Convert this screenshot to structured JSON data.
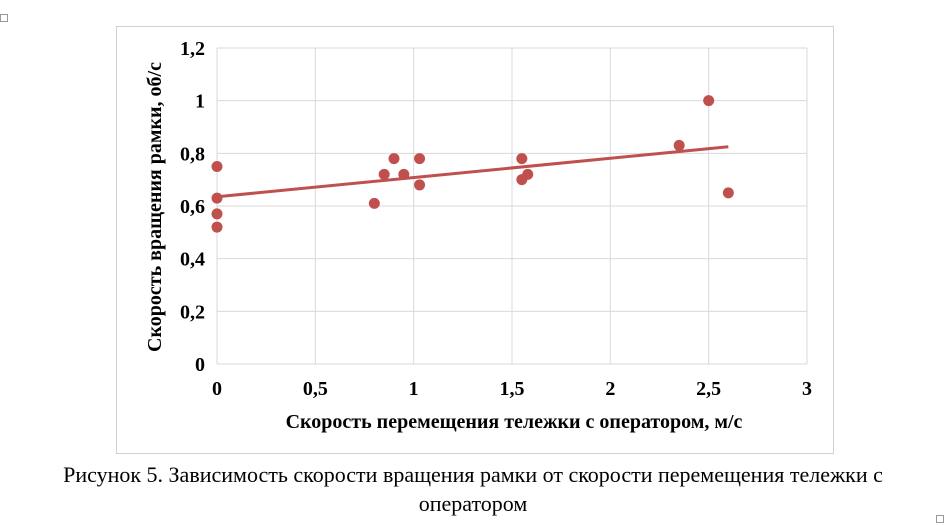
{
  "chart_data": {
    "type": "scatter",
    "title": "",
    "xlabel": "Скорость перемещения тележки с оператором, м/с",
    "ylabel": "Скорость вращения рамки, об/с",
    "xlim": [
      0,
      3
    ],
    "ylim": [
      0,
      1.2
    ],
    "x_ticks": [
      0,
      0.5,
      1,
      1.5,
      2,
      2.5,
      3
    ],
    "x_tick_labels": [
      "0",
      "0,5",
      "1",
      "1,5",
      "2",
      "2,5",
      "3"
    ],
    "y_ticks": [
      0,
      0.2,
      0.4,
      0.6,
      0.8,
      1,
      1.2
    ],
    "y_tick_labels": [
      "0",
      "0,2",
      "0,4",
      "0,6",
      "0,8",
      "1",
      "1,2"
    ],
    "grid": true,
    "legend": "none",
    "marker_color": "#c0504d",
    "trendline_color": "#c0504d",
    "points": [
      {
        "x": 0,
        "y": 0.75
      },
      {
        "x": 0,
        "y": 0.63
      },
      {
        "x": 0,
        "y": 0.57
      },
      {
        "x": 0,
        "y": 0.52
      },
      {
        "x": 0.8,
        "y": 0.61
      },
      {
        "x": 0.85,
        "y": 0.72
      },
      {
        "x": 0.9,
        "y": 0.78
      },
      {
        "x": 0.95,
        "y": 0.72
      },
      {
        "x": 1.03,
        "y": 0.78
      },
      {
        "x": 1.03,
        "y": 0.68
      },
      {
        "x": 1.55,
        "y": 0.78
      },
      {
        "x": 1.55,
        "y": 0.7
      },
      {
        "x": 1.58,
        "y": 0.72
      },
      {
        "x": 2.35,
        "y": 0.83
      },
      {
        "x": 2.5,
        "y": 1.0
      },
      {
        "x": 2.6,
        "y": 0.65
      }
    ],
    "trendline": {
      "type": "linear",
      "x": [
        0,
        2.6
      ],
      "y": [
        0.635,
        0.825
      ]
    }
  },
  "caption": {
    "line1": "Рисунок 5. Зависимость скорости вращения рамки от скорости перемещения тележки с",
    "line2": "оператором"
  }
}
